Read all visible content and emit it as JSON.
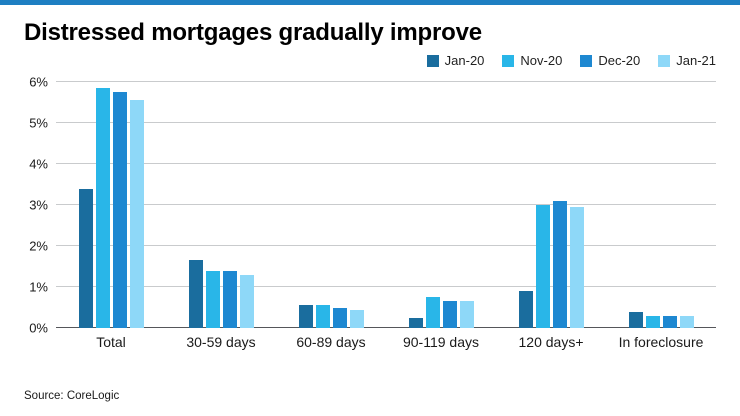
{
  "source_note": "Source: CoreLogic",
  "accent_color": "#1e7fc2",
  "chart_data": {
    "type": "bar",
    "title": "Distressed mortgages gradually improve",
    "categories": [
      "Total",
      "30-59 days",
      "60-89 days",
      "90-119 days",
      "120 days+",
      "In foreclosure"
    ],
    "series": [
      {
        "name": "Jan-20",
        "color": "#1a6d9e",
        "values": [
          3.4,
          1.65,
          0.55,
          0.25,
          0.9,
          0.4
        ]
      },
      {
        "name": "Nov-20",
        "color": "#29b6e8",
        "values": [
          5.85,
          1.4,
          0.55,
          0.75,
          3.0,
          0.3
        ]
      },
      {
        "name": "Dec-20",
        "color": "#1e88d1",
        "values": [
          5.75,
          1.4,
          0.5,
          0.65,
          3.1,
          0.3
        ]
      },
      {
        "name": "Jan-21",
        "color": "#8ed8f8",
        "values": [
          5.55,
          1.3,
          0.45,
          0.65,
          2.95,
          0.3
        ]
      }
    ],
    "ylim": [
      0,
      6
    ],
    "ytick_suffix": "%",
    "xlabel": "",
    "ylabel": "",
    "grid": true,
    "legend_position": "top-right"
  }
}
